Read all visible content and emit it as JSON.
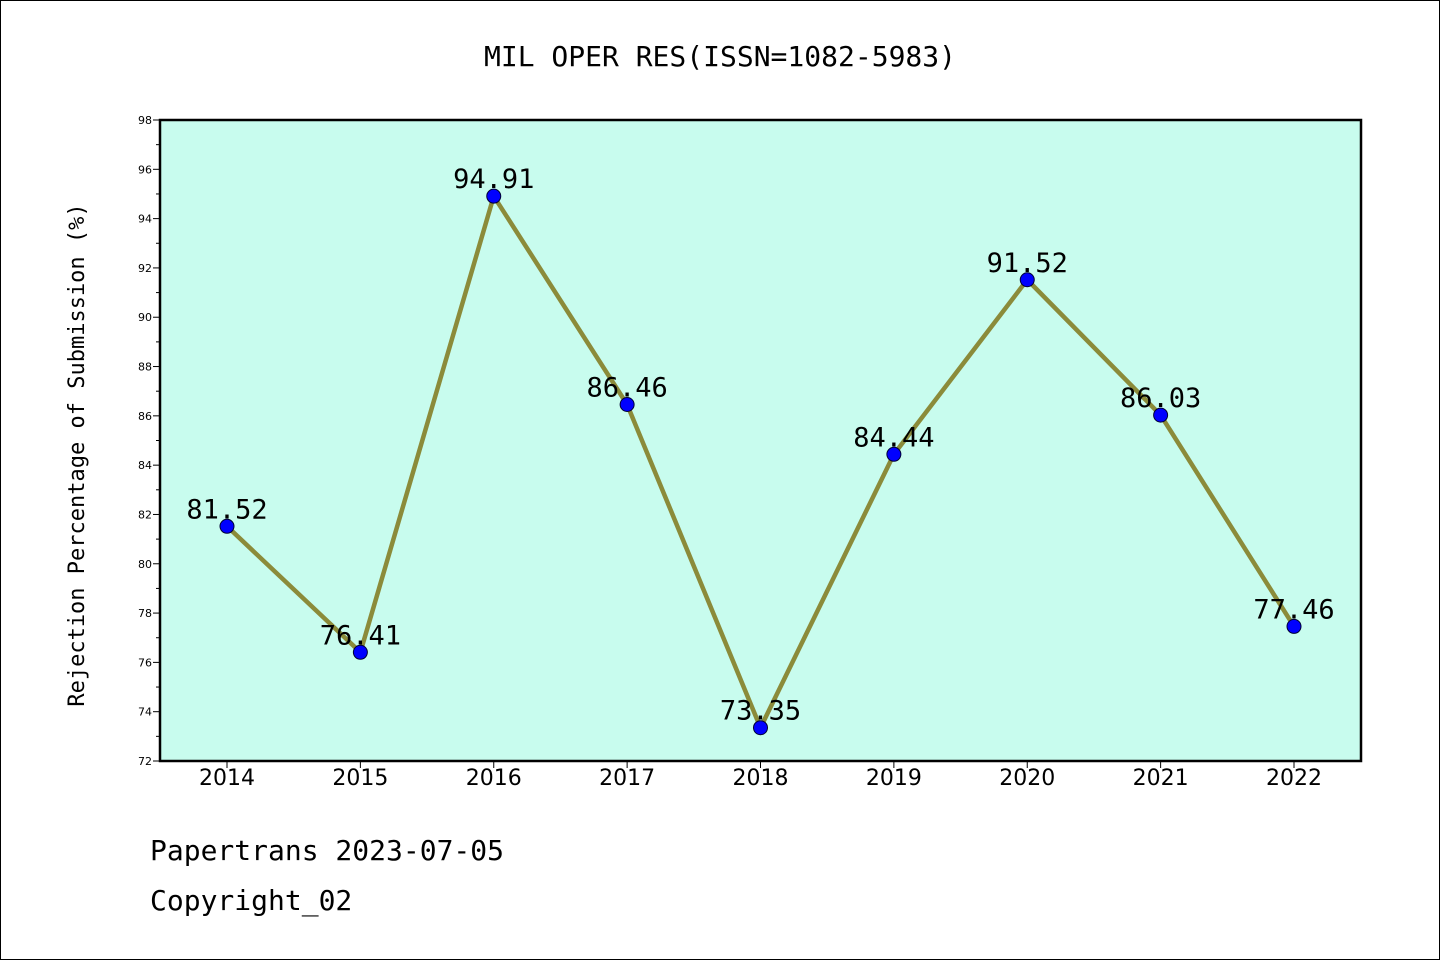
{
  "chart_data": {
    "type": "line",
    "title": "MIL OPER RES(ISSN=1082-5983)",
    "xlabel": "",
    "ylabel": "Rejection Percentage of Submission (%)",
    "categories": [
      "2014",
      "2015",
      "2016",
      "2017",
      "2018",
      "2019",
      "2020",
      "2021",
      "2022"
    ],
    "series": [
      {
        "values": [
          81.52,
          76.41,
          94.91,
          86.46,
          73.35,
          84.44,
          91.52,
          86.03,
          77.46
        ],
        "labels": [
          "81.52",
          "76.41",
          "94.91",
          "86.46",
          "73.35",
          "84.44",
          "91.52",
          "86.03",
          "77.46"
        ]
      }
    ],
    "ylim": [
      72,
      98
    ],
    "yticks": [
      "72",
      "74",
      "76",
      "78",
      "80",
      "82",
      "84",
      "86",
      "88",
      "90",
      "92",
      "94",
      "96",
      "98"
    ],
    "grid": false,
    "colors": {
      "plot_background": "#c8fcee",
      "line": "#8b8b3a",
      "marker": "#0000ff"
    }
  },
  "footer": {
    "source": "Papertrans 2023-07-05",
    "copyright": "Copyright_02"
  }
}
